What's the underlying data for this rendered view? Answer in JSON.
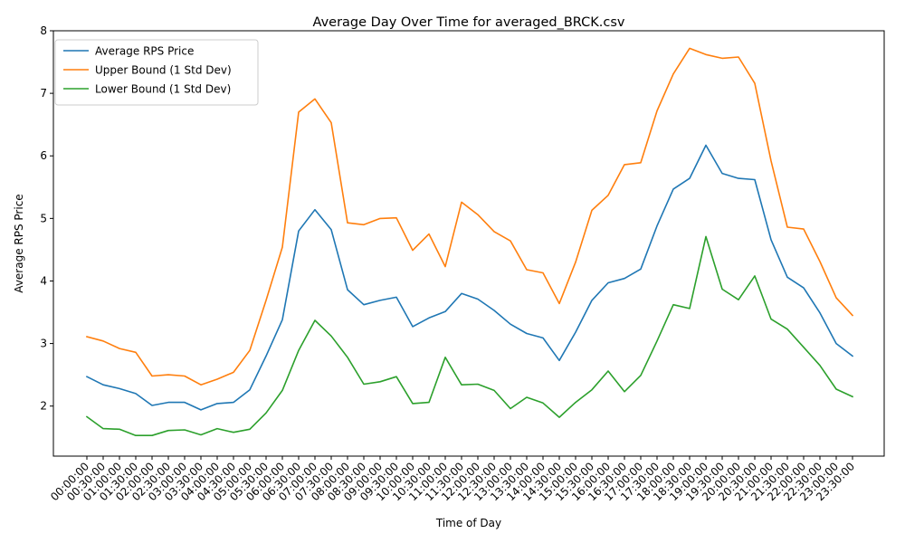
{
  "chart_data": {
    "type": "line",
    "title": "Average Day Over Time for averaged_BRCK.csv",
    "xlabel": "Time of Day",
    "ylabel": "Average RPS Price",
    "ylim": [
      1.2,
      8.0
    ],
    "yticks": [
      2,
      3,
      4,
      5,
      6,
      7,
      8
    ],
    "grid": false,
    "legend_position": "upper-left",
    "categories": [
      "00:00:00",
      "00:30:00",
      "01:00:00",
      "01:30:00",
      "02:00:00",
      "02:30:00",
      "03:00:00",
      "03:30:00",
      "04:00:00",
      "04:30:00",
      "05:00:00",
      "05:30:00",
      "06:00:00",
      "06:30:00",
      "07:00:00",
      "07:30:00",
      "08:00:00",
      "08:30:00",
      "09:00:00",
      "09:30:00",
      "10:00:00",
      "10:30:00",
      "11:00:00",
      "11:30:00",
      "12:00:00",
      "12:30:00",
      "13:00:00",
      "13:30:00",
      "14:00:00",
      "14:30:00",
      "15:00:00",
      "15:30:00",
      "16:00:00",
      "16:30:00",
      "17:00:00",
      "17:30:00",
      "18:00:00",
      "18:30:00",
      "19:00:00",
      "19:30:00",
      "20:00:00",
      "20:30:00",
      "21:00:00",
      "21:30:00",
      "22:00:00",
      "22:30:00",
      "23:00:00",
      "23:30:00"
    ],
    "series": [
      {
        "name": "Average RPS Price",
        "color": "#1f77b4",
        "values": [
          2.47,
          2.34,
          2.28,
          2.2,
          2.01,
          2.06,
          2.06,
          1.94,
          2.04,
          2.06,
          2.26,
          2.8,
          3.38,
          4.8,
          5.14,
          4.82,
          3.86,
          3.62,
          3.69,
          3.74,
          3.27,
          3.41,
          3.51,
          3.8,
          3.71,
          3.53,
          3.31,
          3.16,
          3.09,
          2.73,
          3.18,
          3.69,
          3.97,
          4.04,
          4.19,
          4.88,
          5.47,
          5.64,
          6.17,
          5.72,
          5.64,
          5.62,
          4.66,
          4.06,
          3.89,
          3.49,
          3.0,
          2.8
        ]
      },
      {
        "name": "Upper Bound (1 Std Dev)",
        "color": "#ff7f0e",
        "values": [
          3.11,
          3.04,
          2.92,
          2.86,
          2.48,
          2.5,
          2.48,
          2.34,
          2.43,
          2.54,
          2.89,
          3.69,
          4.54,
          6.7,
          6.91,
          6.53,
          4.93,
          4.9,
          5.0,
          5.01,
          4.49,
          4.75,
          4.23,
          5.26,
          5.06,
          4.79,
          4.64,
          4.18,
          4.13,
          3.64,
          4.3,
          5.13,
          5.37,
          5.86,
          5.89,
          6.72,
          7.31,
          7.72,
          7.62,
          7.56,
          7.58,
          7.16,
          5.92,
          4.86,
          4.83,
          4.31,
          3.73,
          3.45
        ]
      },
      {
        "name": "Lower Bound (1 Std Dev)",
        "color": "#2ca02c",
        "values": [
          1.83,
          1.64,
          1.63,
          1.53,
          1.53,
          1.61,
          1.62,
          1.54,
          1.64,
          1.58,
          1.63,
          1.89,
          2.25,
          2.89,
          3.37,
          3.12,
          2.78,
          2.35,
          2.39,
          2.47,
          2.04,
          2.06,
          2.78,
          2.34,
          2.35,
          2.25,
          1.96,
          2.14,
          2.05,
          1.82,
          2.06,
          2.26,
          2.56,
          2.23,
          2.49,
          3.04,
          3.62,
          3.56,
          4.71,
          3.87,
          3.7,
          4.08,
          3.39,
          3.23,
          2.94,
          2.65,
          2.27,
          2.15
        ]
      }
    ]
  }
}
